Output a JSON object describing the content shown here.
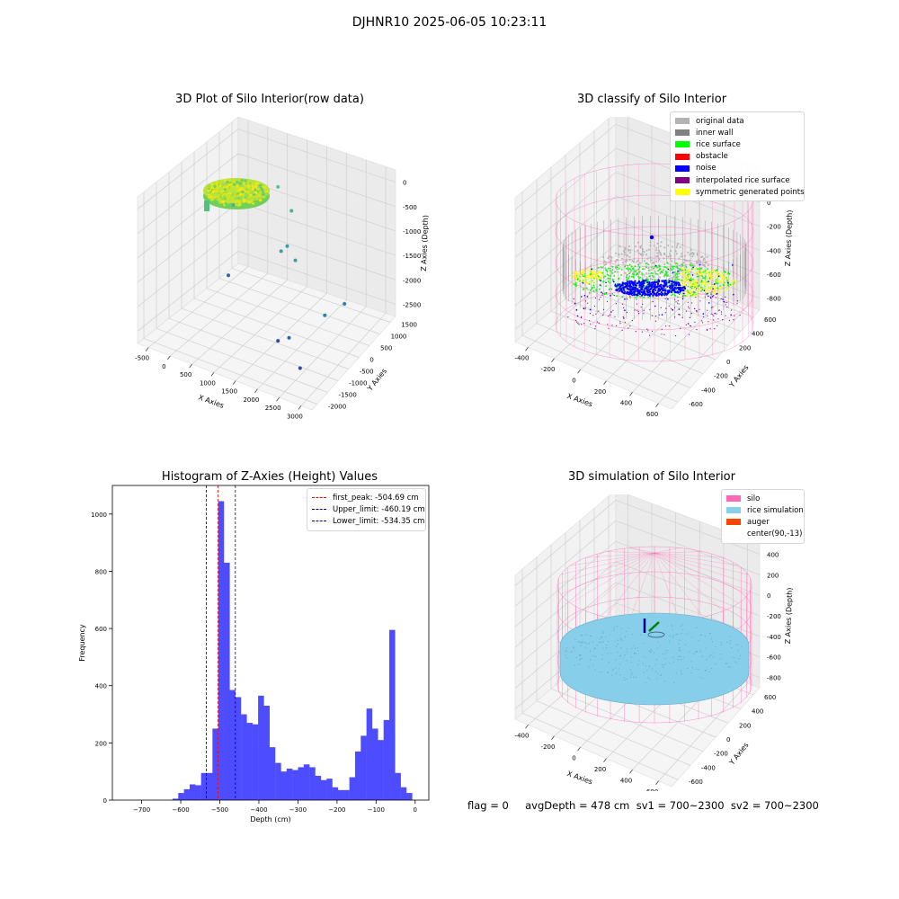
{
  "suptitle": "DJHNR10 2025-06-05 10:23:11",
  "footer": "flag = 0     avgDepth = 478 cm  sv1 = 700~2300  sv2 = 700~2300",
  "colors": {
    "hist_bar": "#4d4dff",
    "first_peak": "#ff0000",
    "limits": "#00008b",
    "silo": "#ff69b4",
    "rice_simulation": "#87ceeb",
    "auger": "#ff4500",
    "original_data": "#b3b3b3",
    "inner_wall": "#808080",
    "rice_surface": "#00ff00",
    "obstacle": "#ff0000",
    "noise": "#0000ff",
    "interpolated_rice_surface": "#800080",
    "symmetric_generated_points": "#ffff00"
  },
  "chart_data": [
    {
      "type": "scatter",
      "projection": "3d",
      "title": "3D Plot of Silo Interior(row data)",
      "xlabel": "X Axies",
      "ylabel": "Y Axies",
      "zlabel": "Z Axies (Depth)",
      "xticks": [
        "-500",
        "0",
        "500",
        "1000",
        "1500",
        "2000",
        "2500",
        "3000"
      ],
      "yticks": [
        "-2000",
        "-1500",
        "-1000",
        "-500",
        "0",
        "500",
        "1000",
        "1500"
      ],
      "zticks": [
        "-2500",
        "-2000",
        "-1500",
        "-1000",
        "-500",
        "0"
      ],
      "points": [
        {
          "x": 90,
          "y": -13,
          "z": -500,
          "note": "dense cluster"
        },
        {
          "x": -300,
          "y": 900,
          "z": -1200
        },
        {
          "x": 400,
          "y": 1500,
          "z": -900
        },
        {
          "x": 900,
          "y": 1200,
          "z": -1100
        },
        {
          "x": 1000,
          "y": 600,
          "z": -1600
        },
        {
          "x": 1200,
          "y": 500,
          "z": -1400
        },
        {
          "x": 1500,
          "y": 300,
          "z": -1500
        },
        {
          "x": 0,
          "y": 200,
          "z": -2200
        },
        {
          "x": 2500,
          "y": -300,
          "z": -2000
        },
        {
          "x": 2900,
          "y": -200,
          "z": -1700
        },
        {
          "x": 1800,
          "y": -1000,
          "z": -2400
        },
        {
          "x": 2100,
          "y": -1100,
          "z": -2200
        },
        {
          "x": 2600,
          "y": -1600,
          "z": -2400
        }
      ]
    },
    {
      "type": "scatter",
      "projection": "3d",
      "title": "3D classify of Silo Interior",
      "xlabel": "X Axies",
      "ylabel": "Y Axies",
      "zlabel": "Z Axies (Depth)",
      "xticks": [
        "-400",
        "-200",
        "0",
        "200",
        "400",
        "600"
      ],
      "yticks": [
        "-600",
        "-400",
        "-200",
        "0",
        "200",
        "400",
        "600"
      ],
      "zticks": [
        "-800",
        "-600",
        "-400",
        "-200",
        "0",
        "200"
      ],
      "legend_position": "upper-right",
      "legend": [
        {
          "label": "original data",
          "color": "#b3b3b3"
        },
        {
          "label": "inner wall",
          "color": "#808080"
        },
        {
          "label": "rice surface",
          "color": "#00ff00"
        },
        {
          "label": "obstacle",
          "color": "#ff0000"
        },
        {
          "label": "noise",
          "color": "#0000ff"
        },
        {
          "label": "interpolated rice surface",
          "color": "#800080"
        },
        {
          "label": "symmetric generated points",
          "color": "#ffff00"
        }
      ]
    },
    {
      "type": "bar",
      "title": "Histogram of Z-Axies (Height) Values",
      "xlabel": "Depth (cm)",
      "ylabel": "Frequency",
      "xlim": [
        -775,
        35
      ],
      "ylim": [
        0,
        1100
      ],
      "xticks": [
        -700,
        -600,
        -500,
        -400,
        -300,
        -200,
        -100,
        0
      ],
      "yticks": [
        0,
        200,
        400,
        600,
        800,
        1000
      ],
      "bin_width": 14.6,
      "bin_start": -621,
      "values": [
        5,
        25,
        38,
        55,
        52,
        95,
        95,
        250,
        1045,
        830,
        385,
        360,
        300,
        270,
        265,
        365,
        330,
        185,
        130,
        100,
        110,
        105,
        115,
        125,
        115,
        85,
        70,
        75,
        45,
        35,
        35,
        80,
        170,
        225,
        320,
        250,
        210,
        280,
        595,
        95,
        45,
        25
      ],
      "vlines": [
        {
          "label": "first_peak: -504.69 cm",
          "x": -504.69,
          "color": "#ff0000"
        },
        {
          "label": "Upper_limit: -460.19 cm",
          "x": -460.19,
          "color": "#00008b"
        },
        {
          "label": "Lower_limit: -534.35 cm",
          "x": -534.35,
          "color": "#00008b"
        }
      ],
      "legend_position": "upper-right"
    },
    {
      "type": "scatter",
      "projection": "3d",
      "title": "3D simulation of Silo Interior",
      "xlabel": "X Axies",
      "ylabel": "Y Axies",
      "zlabel": "Z Axies (Depth)",
      "xticks": [
        "-400",
        "-200",
        "0",
        "200",
        "400",
        "600"
      ],
      "yticks": [
        "-600",
        "-400",
        "-200",
        "0",
        "200",
        "400",
        "600"
      ],
      "zticks": [
        "-800",
        "-600",
        "-400",
        "-200",
        "0",
        "200",
        "400"
      ],
      "legend_position": "upper-right",
      "legend": [
        {
          "label": "silo",
          "color": "#ff69b4"
        },
        {
          "label": "rice simulation",
          "color": "#87ceeb"
        },
        {
          "label": "auger",
          "color": "#ff4500"
        },
        {
          "label": "center(90,-13)",
          "color": ""
        }
      ]
    }
  ]
}
